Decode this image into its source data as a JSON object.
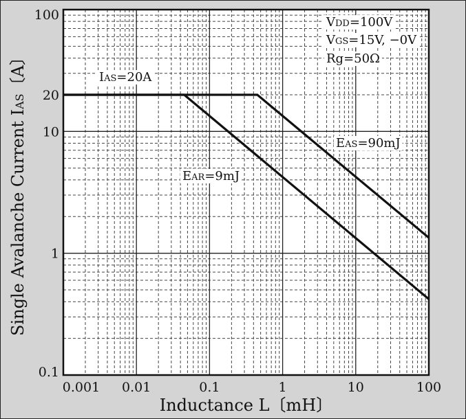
{
  "chart_data": {
    "type": "line",
    "title": "",
    "xlabel": "Inductance  L〔mH〕",
    "ylabel": "Single Avalanche Current  I",
    "ylabel_sub": "AS",
    "ylabel_unit": "〔A〕",
    "x_scale": "log",
    "y_scale": "log",
    "xlim": [
      0.001,
      100
    ],
    "ylim": [
      0.1,
      100
    ],
    "grid": true,
    "x_ticks": [
      "0.001",
      "0.01",
      "0.1",
      "1",
      "10",
      "100"
    ],
    "x_tick_values": [
      0.001,
      0.01,
      0.1,
      1,
      10,
      100
    ],
    "y_ticks": [
      "0.1",
      "1",
      "10",
      "20",
      "100"
    ],
    "y_tick_values": [
      0.1,
      1,
      10,
      20,
      100
    ],
    "series": [
      {
        "name": "EAS=90mJ",
        "x": [
          0.001,
          0.45,
          100
        ],
        "y": [
          20,
          20,
          1.34
        ]
      },
      {
        "name": "EAR=9mJ",
        "x": [
          0.001,
          0.045,
          100
        ],
        "y": [
          20,
          20,
          0.42
        ]
      }
    ],
    "annotations": {
      "ias": {
        "main": "I",
        "sub": "AS",
        "rest": "=20A"
      },
      "eas": {
        "main": "E",
        "sub": "AS",
        "rest": "=90mJ"
      },
      "ear": {
        "main": "E",
        "sub": "AR",
        "rest": "=9mJ"
      },
      "conditions": [
        {
          "main": "V",
          "sub": "DD",
          "rest": "=100V"
        },
        {
          "main": "V",
          "sub": "GS",
          "rest": "=15V, −0V"
        },
        {
          "main": "Rg=50Ω",
          "sub": "",
          "rest": ""
        }
      ]
    }
  }
}
